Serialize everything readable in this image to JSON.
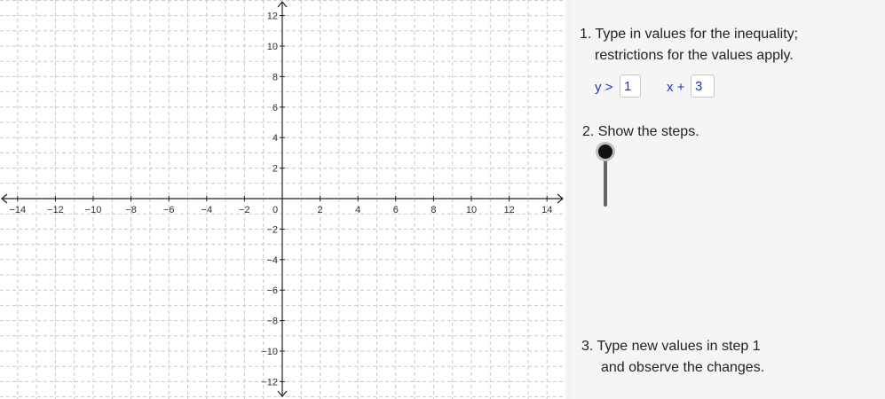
{
  "graph": {
    "x_ticks": [
      "−14",
      "−12",
      "−10",
      "−8",
      "−6",
      "−4",
      "−2",
      "2",
      "4",
      "6",
      "8",
      "10",
      "12",
      "14"
    ],
    "y_ticks_pos": [
      "12",
      "10",
      "8",
      "6",
      "4",
      "2"
    ],
    "y_ticks_neg": [
      "−2",
      "−4",
      "−6",
      "−8",
      "−10",
      "−12"
    ],
    "origin_label": "0",
    "x_range": [
      -15,
      15
    ],
    "y_range": [
      -13,
      13
    ],
    "grid": true
  },
  "panel": {
    "step1_line1": "1. Type in values for the inequality;",
    "step1_line2": "restrictions for the values apply.",
    "ineq_prefix": "y >",
    "slope_value": "1",
    "ineq_mid": "x +",
    "intercept_value": "3",
    "step2": "2. Show the steps.",
    "slider_level": 0,
    "step3_line1": "3. Type new values in step 1",
    "step3_line2": "and observe the changes."
  },
  "colors": {
    "accent": "#1a33cc",
    "axis": "#222222",
    "grid": "#c8c8c8"
  }
}
